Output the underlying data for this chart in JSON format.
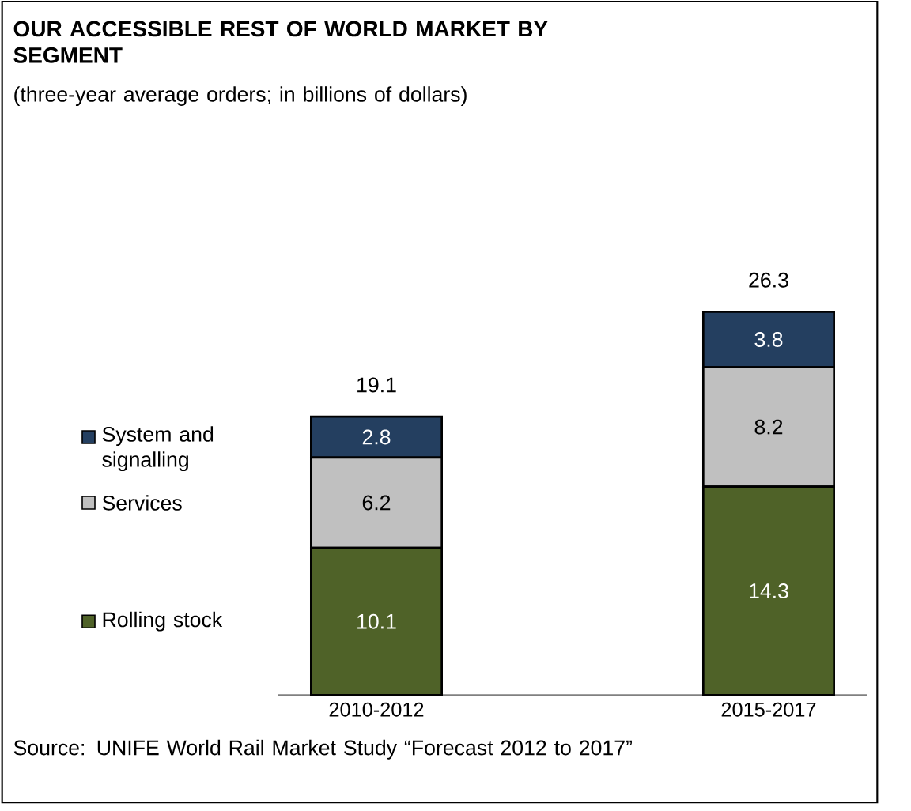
{
  "chart_data": {
    "type": "bar",
    "stacked": true,
    "title": "OUR ACCESSIBLE REST OF WORLD MARKET BY SEGMENT",
    "subtitle": "(three-year average orders; in billions of dollars)",
    "categories": [
      "2010-2012",
      "2015-2017"
    ],
    "series": [
      {
        "name": "Rolling stock",
        "color": "#4f6228",
        "values": [
          10.1,
          14.3
        ]
      },
      {
        "name": "Services",
        "color": "#c0c0c0",
        "values": [
          6.2,
          8.2
        ]
      },
      {
        "name": "System and signalling",
        "color": "#243f60",
        "values": [
          2.8,
          3.8
        ]
      }
    ],
    "data_labels": true,
    "totals": [
      "19.1",
      "26.3"
    ],
    "legend": "left",
    "tick_labels": "x",
    "annotations": [
      "Source: UNIFE World Rail Market Study “Forecast 2012 to 2017”"
    ]
  }
}
